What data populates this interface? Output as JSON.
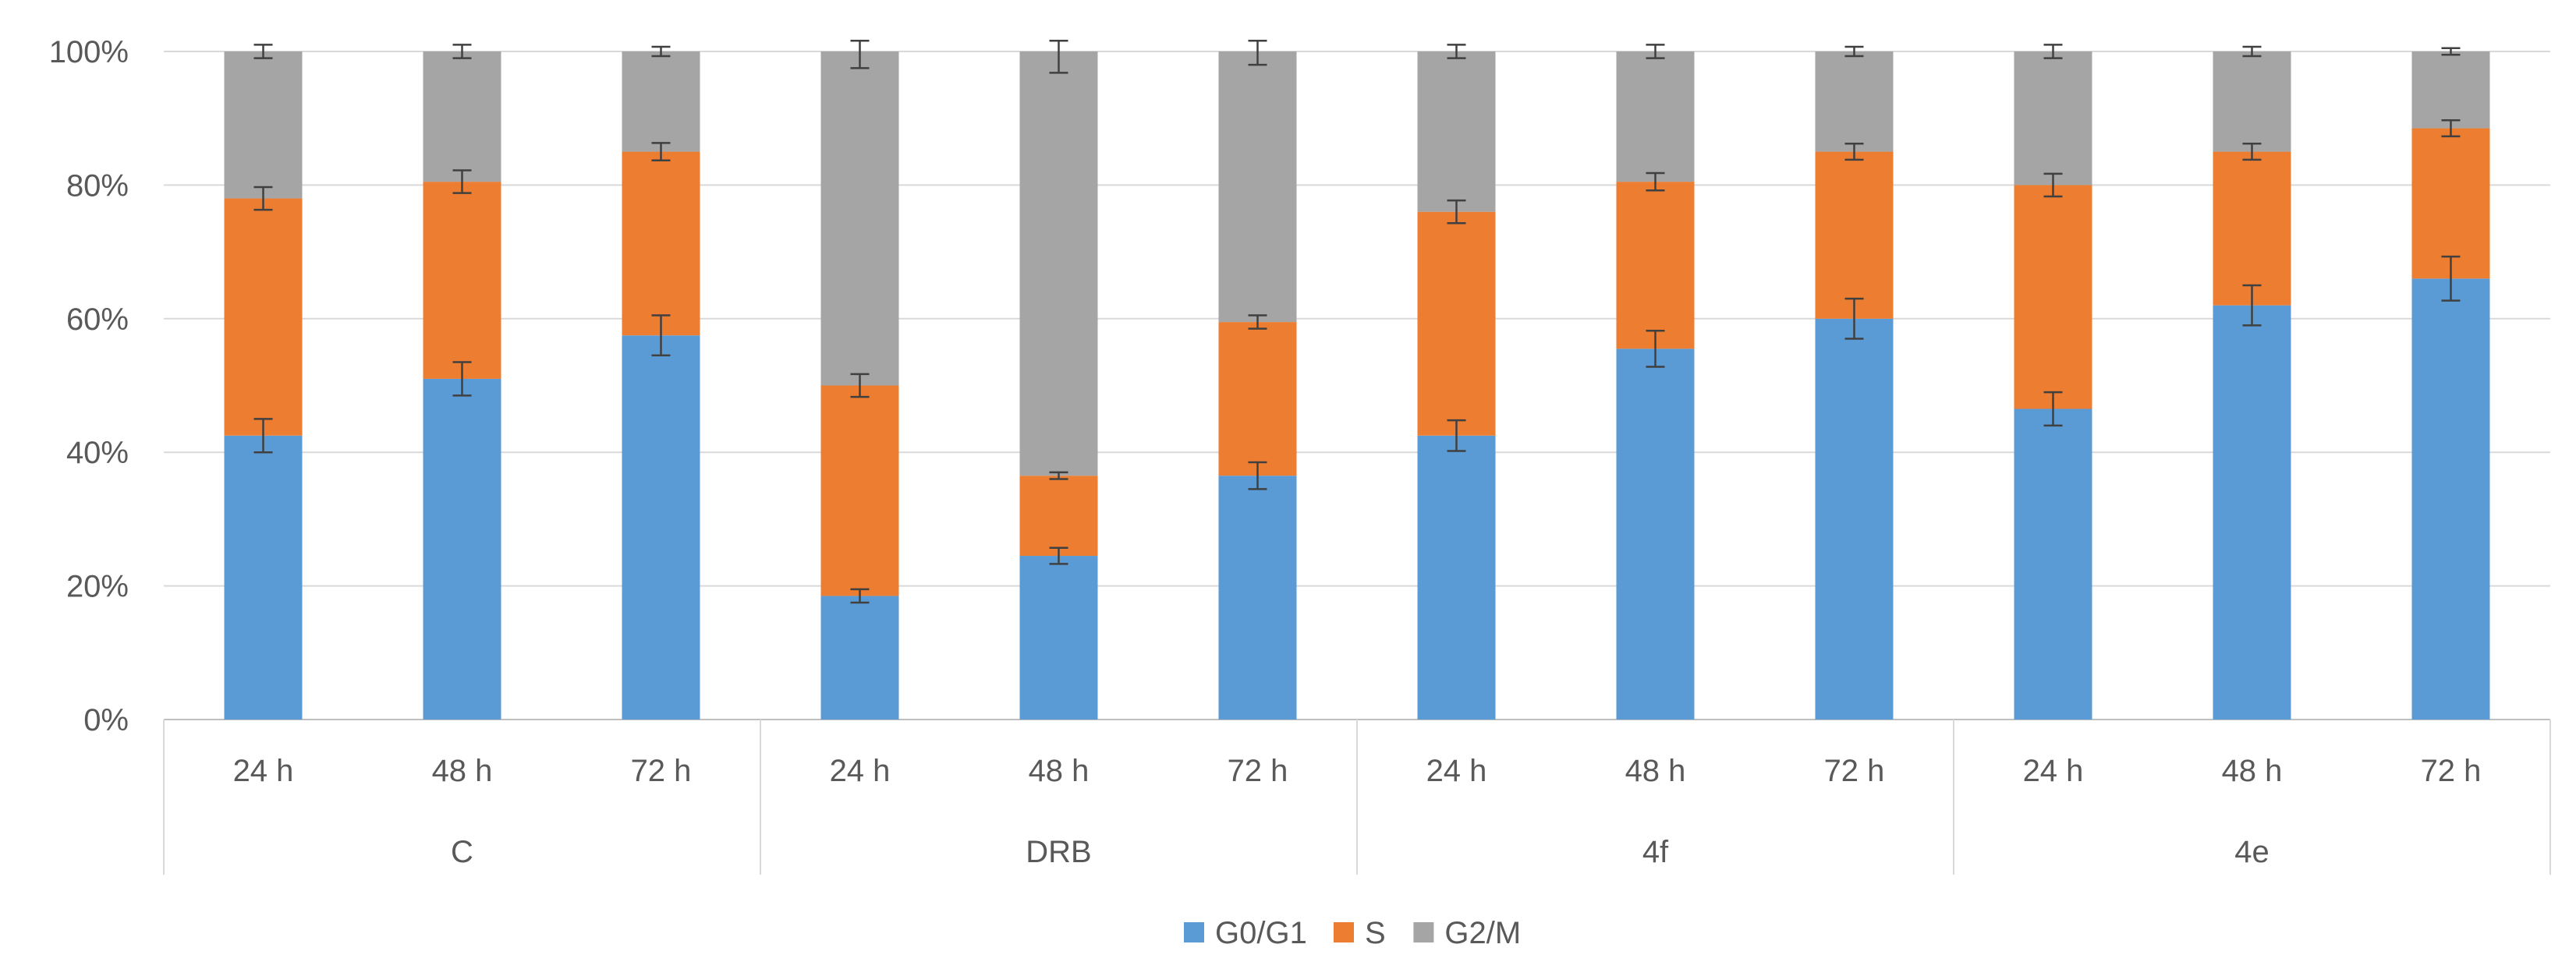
{
  "chart_data": {
    "type": "bar",
    "stacked": true,
    "percent": true,
    "ylim": [
      0,
      100
    ],
    "yticks": [
      0,
      20,
      40,
      60,
      80,
      100
    ],
    "ytick_labels": [
      "0%",
      "20%",
      "40%",
      "60%",
      "80%",
      "100%"
    ],
    "groups": [
      {
        "name": "C",
        "categories": [
          "24 h",
          "48 h",
          "72 h"
        ]
      },
      {
        "name": "DRB",
        "categories": [
          "24 h",
          "48 h",
          "72 h"
        ]
      },
      {
        "name": "4f",
        "categories": [
          "24 h",
          "48 h",
          "72 h"
        ]
      },
      {
        "name": "4e",
        "categories": [
          "24 h",
          "48 h",
          "72 h"
        ]
      }
    ],
    "series": [
      {
        "name": "G0/G1",
        "color": "#5B9BD5",
        "values": [
          42.5,
          51.0,
          57.5,
          18.5,
          24.5,
          36.5,
          42.5,
          55.5,
          60.0,
          46.5,
          62.0,
          66.0
        ],
        "errors": [
          2.5,
          2.5,
          3.0,
          1.0,
          1.2,
          2.0,
          2.3,
          2.7,
          3.0,
          2.5,
          3.0,
          3.3
        ]
      },
      {
        "name": "S",
        "color": "#ED7D31",
        "values": [
          35.5,
          29.5,
          27.5,
          31.5,
          12.0,
          23.0,
          33.5,
          25.0,
          25.0,
          33.5,
          23.0,
          22.5
        ],
        "errors": [
          1.7,
          1.7,
          1.3,
          1.7,
          0.5,
          1.0,
          1.7,
          1.3,
          1.2,
          1.7,
          1.2,
          1.2
        ]
      },
      {
        "name": "G2/M",
        "color": "#A5A5A5",
        "values": [
          22.0,
          19.5,
          15.0,
          50.0,
          63.5,
          40.5,
          24.0,
          19.5,
          15.0,
          20.0,
          15.0,
          11.5
        ],
        "errors": [
          1.0,
          1.0,
          0.7,
          2.5,
          3.2,
          2.0,
          1.0,
          1.0,
          0.7,
          1.0,
          0.7,
          0.5
        ]
      }
    ],
    "legend_position": "bottom",
    "gridlines": true,
    "title": "",
    "xlabel": "",
    "ylabel": ""
  }
}
